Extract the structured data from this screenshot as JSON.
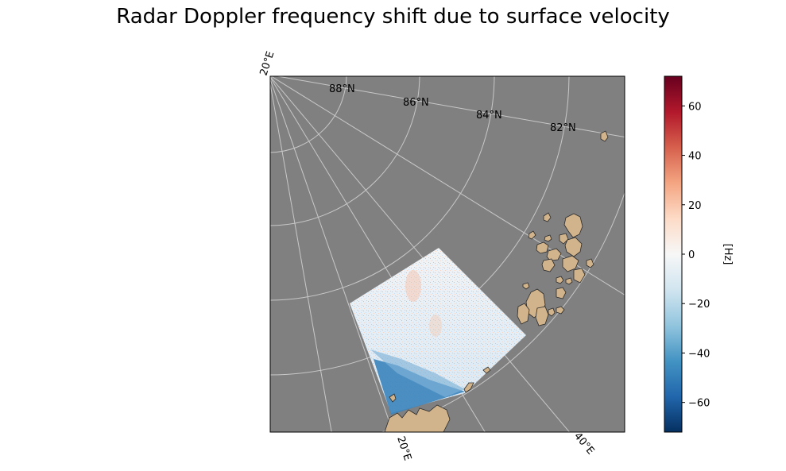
{
  "title": "Radar Doppler frequency shift due to surface velocity",
  "map": {
    "background_color": "#808080",
    "land_color": "#d2b48c",
    "gridline_color": "#c8c8c8",
    "lat_labels": [
      "88°N",
      "86°N",
      "84°N",
      "82°N"
    ],
    "lon_labels_top": [
      "20°E"
    ],
    "lon_labels_bottom": [
      "20°E",
      "40°E"
    ]
  },
  "colorbar": {
    "label": "[Hz]",
    "colormap": "RdBu_r",
    "min": -72,
    "max": 72,
    "ticks": [
      "60",
      "40",
      "20",
      "0",
      "−20",
      "−40",
      "−60"
    ],
    "tick_values": [
      60,
      40,
      20,
      0,
      -20,
      -40,
      -60
    ],
    "colors": [
      "#053061",
      "#2166ac",
      "#4393c3",
      "#92c5de",
      "#d1e5f0",
      "#f7f7f7",
      "#fddbc7",
      "#f4a582",
      "#d6604d",
      "#b2182b",
      "#67001f"
    ]
  }
}
